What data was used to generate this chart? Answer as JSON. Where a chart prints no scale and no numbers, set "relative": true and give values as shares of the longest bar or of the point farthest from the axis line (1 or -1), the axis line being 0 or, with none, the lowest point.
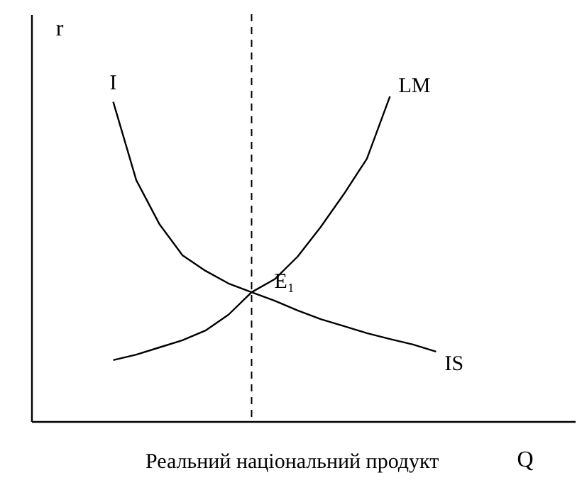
{
  "chart_data": {
    "type": "line",
    "relative": true,
    "xlabel": "Q",
    "ylabel": "r",
    "tick_labels": false,
    "marker": "none",
    "line_style": "solid",
    "categories": [
      null,
      null,
      null,
      null,
      null,
      null,
      null,
      null,
      null,
      null,
      null,
      null,
      null,
      null,
      null
    ],
    "series": [
      {
        "name": "IS",
        "color": "#000000",
        "values": [
          0.983,
          0.742,
          0.607,
          0.511,
          0.463,
          0.424,
          0.397,
          0.371,
          0.341,
          0.314,
          0.293,
          0.271,
          0.253,
          0.236,
          0.214
        ]
      },
      {
        "name": "LM",
        "color": "#000000",
        "values": [
          0.188,
          0.205,
          0.227,
          0.249,
          0.279,
          0.328,
          0.397,
          0.437,
          0.507,
          0.598,
          0.699,
          0.808,
          1.0,
          null,
          null
        ]
      }
    ],
    "ref_lines": [
      {
        "axis": "x",
        "color": "#000000",
        "line_style": "dashed"
      }
    ],
    "annotations": [
      "I",
      "E₁",
      "Реальний національний продукт"
    ]
  }
}
